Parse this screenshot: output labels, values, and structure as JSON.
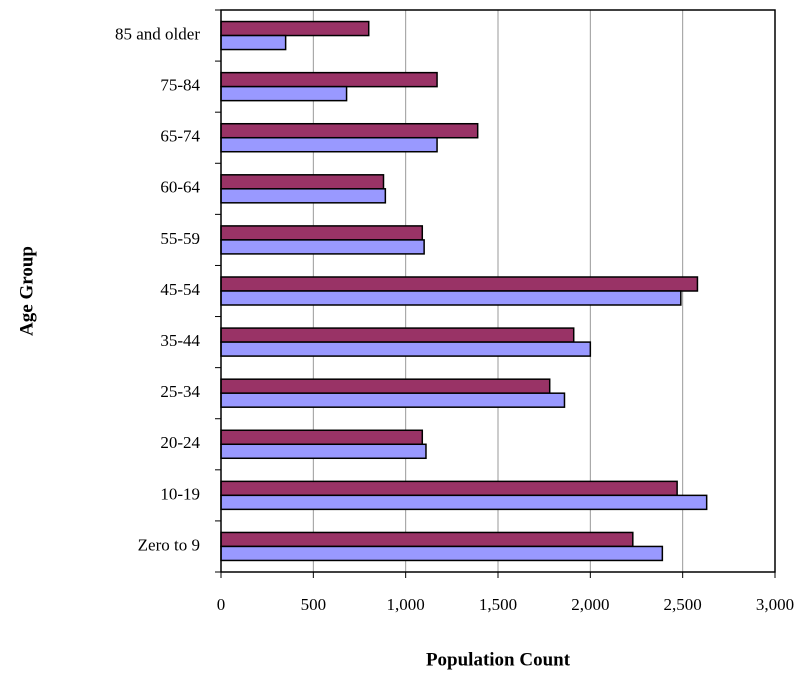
{
  "chart_data": {
    "type": "hbar",
    "xlabel": "Population Count",
    "ylabel": "Age Group",
    "categories": [
      "85 and older",
      "75-84",
      "65-74",
      "60-64",
      "55-59",
      "45-54",
      "35-44",
      "25-34",
      "20-24",
      "10-19",
      "Zero to 9"
    ],
    "series": [
      {
        "color": "#993366",
        "values": [
          800,
          1170,
          1390,
          880,
          1090,
          2580,
          1910,
          1780,
          1090,
          2470,
          2230
        ]
      },
      {
        "color": "#9999ff",
        "values": [
          350,
          680,
          1170,
          890,
          1100,
          2490,
          2000,
          1860,
          1110,
          2630,
          2390
        ]
      }
    ],
    "xlim": [
      0,
      3000
    ],
    "xticks": [
      0,
      500,
      {
        "value": 1000,
        "label": "1,000"
      },
      {
        "value": 1500,
        "label": "1,500"
      },
      {
        "value": 2000,
        "label": "2,000"
      },
      {
        "value": 2500,
        "label": "2,500"
      },
      {
        "value": 3000,
        "label": "3,000"
      }
    ],
    "grid": true
  }
}
